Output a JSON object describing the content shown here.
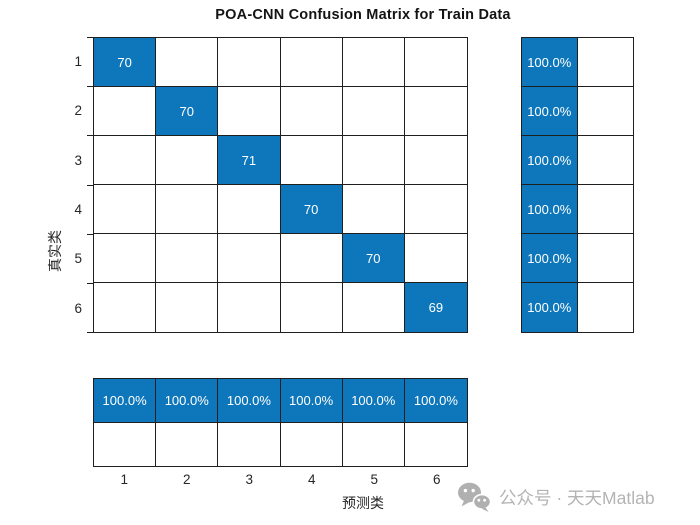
{
  "title": "POA-CNN Confusion Matrix for Train Data",
  "chart_data": {
    "type": "heatmap",
    "subtype": "confusion-matrix",
    "title": "POA-CNN Confusion Matrix for Train Data",
    "xlabel": "预测类",
    "ylabel": "真实类",
    "classes": [
      "1",
      "2",
      "3",
      "4",
      "5",
      "6"
    ],
    "matrix": [
      [
        70,
        0,
        0,
        0,
        0,
        0
      ],
      [
        0,
        70,
        0,
        0,
        0,
        0
      ],
      [
        0,
        0,
        71,
        0,
        0,
        0
      ],
      [
        0,
        0,
        0,
        70,
        0,
        0
      ],
      [
        0,
        0,
        0,
        0,
        70,
        0
      ],
      [
        0,
        0,
        0,
        0,
        0,
        69
      ]
    ],
    "diagonal_values": [
      70,
      70,
      71,
      70,
      70,
      69
    ],
    "zero_display": "",
    "row_summary_pct": [
      "100.0%",
      "100.0%",
      "100.0%",
      "100.0%",
      "100.0%",
      "100.0%"
    ],
    "row_summary_secondary": [
      "",
      "",
      "",
      "",
      "",
      ""
    ],
    "col_summary_pct": [
      "100.0%",
      "100.0%",
      "100.0%",
      "100.0%",
      "100.0%",
      "100.0%"
    ],
    "col_summary_secondary": [
      "",
      "",
      "",
      "",
      "",
      ""
    ],
    "legend": "none",
    "grid": true,
    "axis_ranges": {
      "rows": 6,
      "cols": 6
    }
  },
  "colors": {
    "diagonal": "#0e77bb",
    "cell_text": "#ffffff",
    "grid_line": "#1f1f1f",
    "axis_text": "#262626",
    "title_text": "#141414",
    "background": "#ffffff",
    "watermark": "#b4b4b4"
  },
  "watermark": {
    "icon": "wechat-icon",
    "text": "公众号 · 天天Matlab"
  }
}
